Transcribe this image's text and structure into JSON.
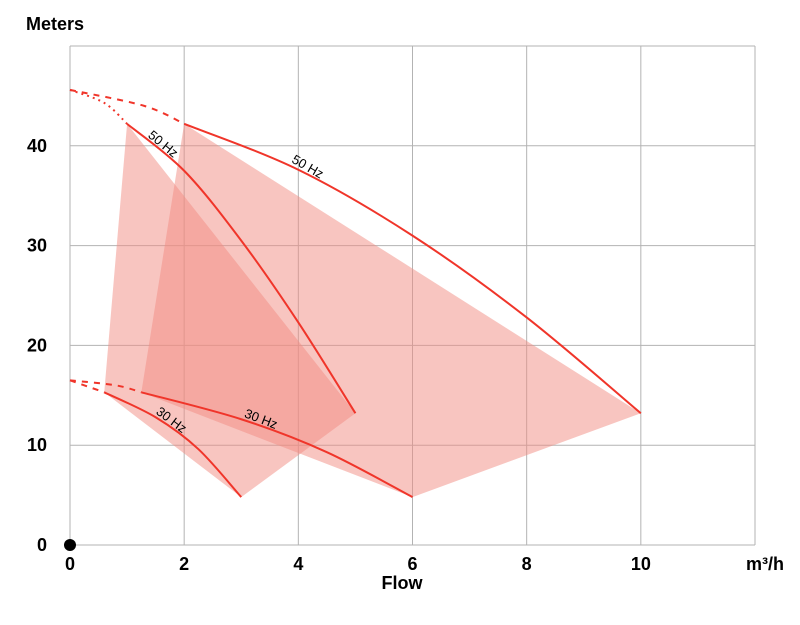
{
  "chart_data": {
    "type": "line",
    "title": "",
    "ylabel": "Meters",
    "xlabel": "Flow",
    "xunit": "m³/h",
    "xlim": [
      0,
      12
    ],
    "ylim": [
      0,
      50
    ],
    "xticks": [
      0,
      2,
      4,
      6,
      8,
      10
    ],
    "yticks": [
      0,
      10,
      20,
      30,
      40
    ],
    "grid": true,
    "colors": {
      "curve": "#f0352a",
      "area": "#f28b82"
    },
    "areas": [
      {
        "points": [
          [
            1,
            42.2
          ],
          [
            5,
            13.2
          ],
          [
            3,
            4.8
          ],
          [
            0.6,
            15.3
          ]
        ]
      },
      {
        "points": [
          [
            2,
            42.2
          ],
          [
            10,
            13.2
          ],
          [
            6,
            4.8
          ],
          [
            1.25,
            15.3
          ]
        ]
      }
    ],
    "series": [
      {
        "name": "50 Hz",
        "points": [
          [
            1,
            42.2
          ],
          [
            2,
            37.5
          ],
          [
            3,
            30.5
          ],
          [
            4,
            22.3
          ],
          [
            5,
            13.2
          ]
        ],
        "extrapolation": [
          [
            0,
            45.6
          ],
          [
            0.6,
            44.3
          ],
          [
            1,
            42.2
          ]
        ],
        "label_at": 1.55
      },
      {
        "name": "30 Hz",
        "points": [
          [
            0.6,
            15.3
          ],
          [
            1.5,
            12.8
          ],
          [
            2.25,
            9.6
          ],
          [
            3,
            4.8
          ]
        ],
        "extrapolation": [
          [
            0,
            16.5
          ],
          [
            0.6,
            15.3
          ]
        ],
        "label_at": 1.7
      },
      {
        "name": "50 Hz",
        "points": [
          [
            2,
            42.2
          ],
          [
            4,
            37.6
          ],
          [
            6,
            31
          ],
          [
            8,
            22.8
          ],
          [
            10,
            13.2
          ]
        ],
        "extrapolation": [
          [
            0,
            45.6
          ],
          [
            1.3,
            44
          ],
          [
            2,
            42.2
          ]
        ],
        "label_at": 4.1
      },
      {
        "name": "30 Hz",
        "points": [
          [
            1.25,
            15.3
          ],
          [
            3,
            12.6
          ],
          [
            4.5,
            9.3
          ],
          [
            6,
            4.8
          ]
        ],
        "extrapolation": [
          [
            0,
            16.5
          ],
          [
            0.8,
            16
          ],
          [
            1.25,
            15.3
          ]
        ],
        "label_at": 3.3
      }
    ]
  }
}
